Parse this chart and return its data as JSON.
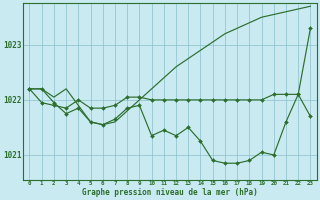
{
  "title": "Graphe pression niveau de la mer (hPa)",
  "bg_color": "#c8eaf0",
  "plot_bg_color": "#c8eaf0",
  "grid_color": "#8bbfcc",
  "line_color": "#2d6e2d",
  "hours": [
    0,
    1,
    2,
    3,
    4,
    5,
    6,
    7,
    8,
    9,
    10,
    11,
    12,
    13,
    14,
    15,
    16,
    17,
    18,
    19,
    20,
    21,
    22,
    23
  ],
  "line1": [
    1022.2,
    1022.2,
    1021.95,
    1021.75,
    1021.85,
    1021.6,
    1021.55,
    1021.65,
    1021.85,
    1021.9,
    1021.35,
    1021.45,
    1021.35,
    1021.5,
    1021.25,
    1020.9,
    1020.85,
    1020.85,
    1020.9,
    1021.05,
    1021.0,
    1021.6,
    1022.1,
    1023.3
  ],
  "line2_flat": [
    1022.2,
    1021.95,
    1021.9,
    1021.85,
    1022.0,
    1021.85,
    1021.85,
    1021.9,
    1022.05,
    1022.05,
    1022.0,
    1022.0,
    1022.0,
    1022.0,
    1022.0,
    1022.0,
    1022.0,
    1022.0,
    1022.0,
    1022.0,
    1022.1,
    1022.1,
    1022.1,
    1021.7
  ],
  "line3_rising": [
    1022.2,
    1022.2,
    1022.05,
    1022.2,
    1021.9,
    1021.6,
    1021.55,
    1021.6,
    1021.8,
    1022.0,
    1022.2,
    1022.4,
    1022.6,
    1022.75,
    1022.9,
    1023.05,
    1023.2,
    1023.3,
    1023.4,
    1023.5,
    1023.55,
    1023.6,
    1023.65,
    1023.7
  ],
  "ylim_min": 1020.55,
  "ylim_max": 1023.75,
  "ytick_min": 1021,
  "ytick_mid": 1022,
  "ytick_max": 1023,
  "marker": "D",
  "markersize": 2.0,
  "lw": 0.85
}
